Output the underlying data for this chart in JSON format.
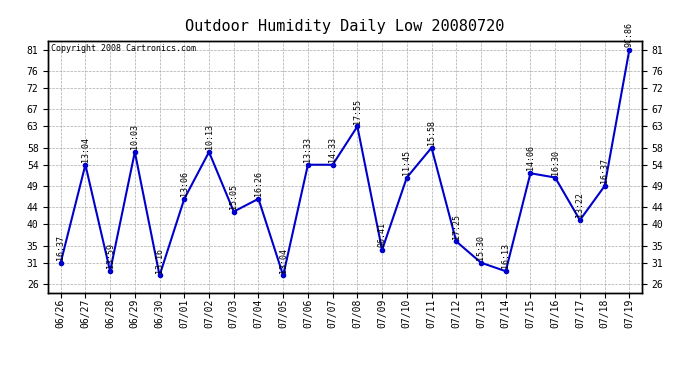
{
  "title": "Outdoor Humidity Daily Low 20080720",
  "copyright": "Copyright 2008 Cartronics.com",
  "x_labels": [
    "06/26",
    "06/27",
    "06/28",
    "06/29",
    "06/30",
    "07/01",
    "07/02",
    "07/03",
    "07/04",
    "07/05",
    "07/06",
    "07/07",
    "07/08",
    "07/09",
    "07/10",
    "07/11",
    "07/12",
    "07/13",
    "07/14",
    "07/15",
    "07/16",
    "07/17",
    "07/18",
    "07/19"
  ],
  "y_values": [
    31,
    54,
    29,
    57,
    28,
    46,
    57,
    43,
    46,
    28,
    54,
    54,
    63,
    34,
    51,
    58,
    36,
    31,
    29,
    52,
    51,
    41,
    49,
    81
  ],
  "point_labels": [
    "16:37",
    "13:04",
    "13:59",
    "10:03",
    "13:16",
    "13:06",
    "10:13",
    "15:05",
    "16:26",
    "13:04",
    "13:33",
    "14:33",
    "17:55",
    "06:41",
    "11:45",
    "15:58",
    "17:25",
    "15:30",
    "16:13",
    "14:06",
    "16:30",
    "13:22",
    "16:37",
    "9C:86"
  ],
  "ylim_min": 24,
  "ylim_max": 83,
  "yticks": [
    26,
    31,
    35,
    40,
    44,
    49,
    54,
    58,
    63,
    67,
    72,
    76,
    81
  ],
  "line_color": "#0000cc",
  "marker_color": "#0000cc",
  "bg_color": "#ffffff",
  "plot_bg_color": "#ffffff",
  "grid_color": "#aaaaaa",
  "title_fontsize": 11,
  "copyright_fontsize": 6,
  "label_fontsize": 6,
  "tick_fontsize": 7
}
